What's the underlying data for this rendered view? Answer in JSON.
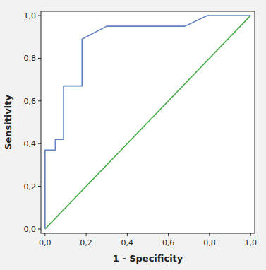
{
  "chart_data": {
    "type": "line",
    "xlabel": "1 - Specificity",
    "ylabel": "Sensitivity",
    "series": [
      {
        "x": [
          0.0,
          1.0
        ],
        "values": [
          0.0,
          1.0
        ],
        "color": "#40a840"
      },
      {
        "x": [
          0.0,
          0.0,
          0.05,
          0.05,
          0.09,
          0.09,
          0.09,
          0.18,
          0.18,
          0.3,
          0.65,
          0.68,
          0.79,
          1.0
        ],
        "values": [
          0.0,
          0.37,
          0.37,
          0.42,
          0.42,
          0.58,
          0.67,
          0.67,
          0.89,
          0.95,
          0.95,
          0.95,
          1.0,
          1.0
        ],
        "color": "#6080c0"
      }
    ],
    "xlim": [
      -0.02,
      1.02
    ],
    "ylim": [
      -0.02,
      1.02
    ],
    "xticks": [
      {
        "value": 0.0,
        "label": "0,0"
      },
      {
        "value": 0.2,
        "label": "0,2"
      },
      {
        "value": 0.4,
        "label": "0,4"
      },
      {
        "value": 0.6,
        "label": "0,6"
      },
      {
        "value": 0.8,
        "label": "0,8"
      },
      {
        "value": 1.0,
        "label": "1,0"
      }
    ],
    "yticks": [
      {
        "value": 0.0,
        "label": "0,0"
      },
      {
        "value": 0.2,
        "label": "0,2"
      },
      {
        "value": 0.4,
        "label": "0,4"
      },
      {
        "value": 0.6,
        "label": "0,6"
      },
      {
        "value": 0.8,
        "label": "0,8"
      },
      {
        "value": 1.0,
        "label": "1,0"
      }
    ],
    "grid": false
  }
}
